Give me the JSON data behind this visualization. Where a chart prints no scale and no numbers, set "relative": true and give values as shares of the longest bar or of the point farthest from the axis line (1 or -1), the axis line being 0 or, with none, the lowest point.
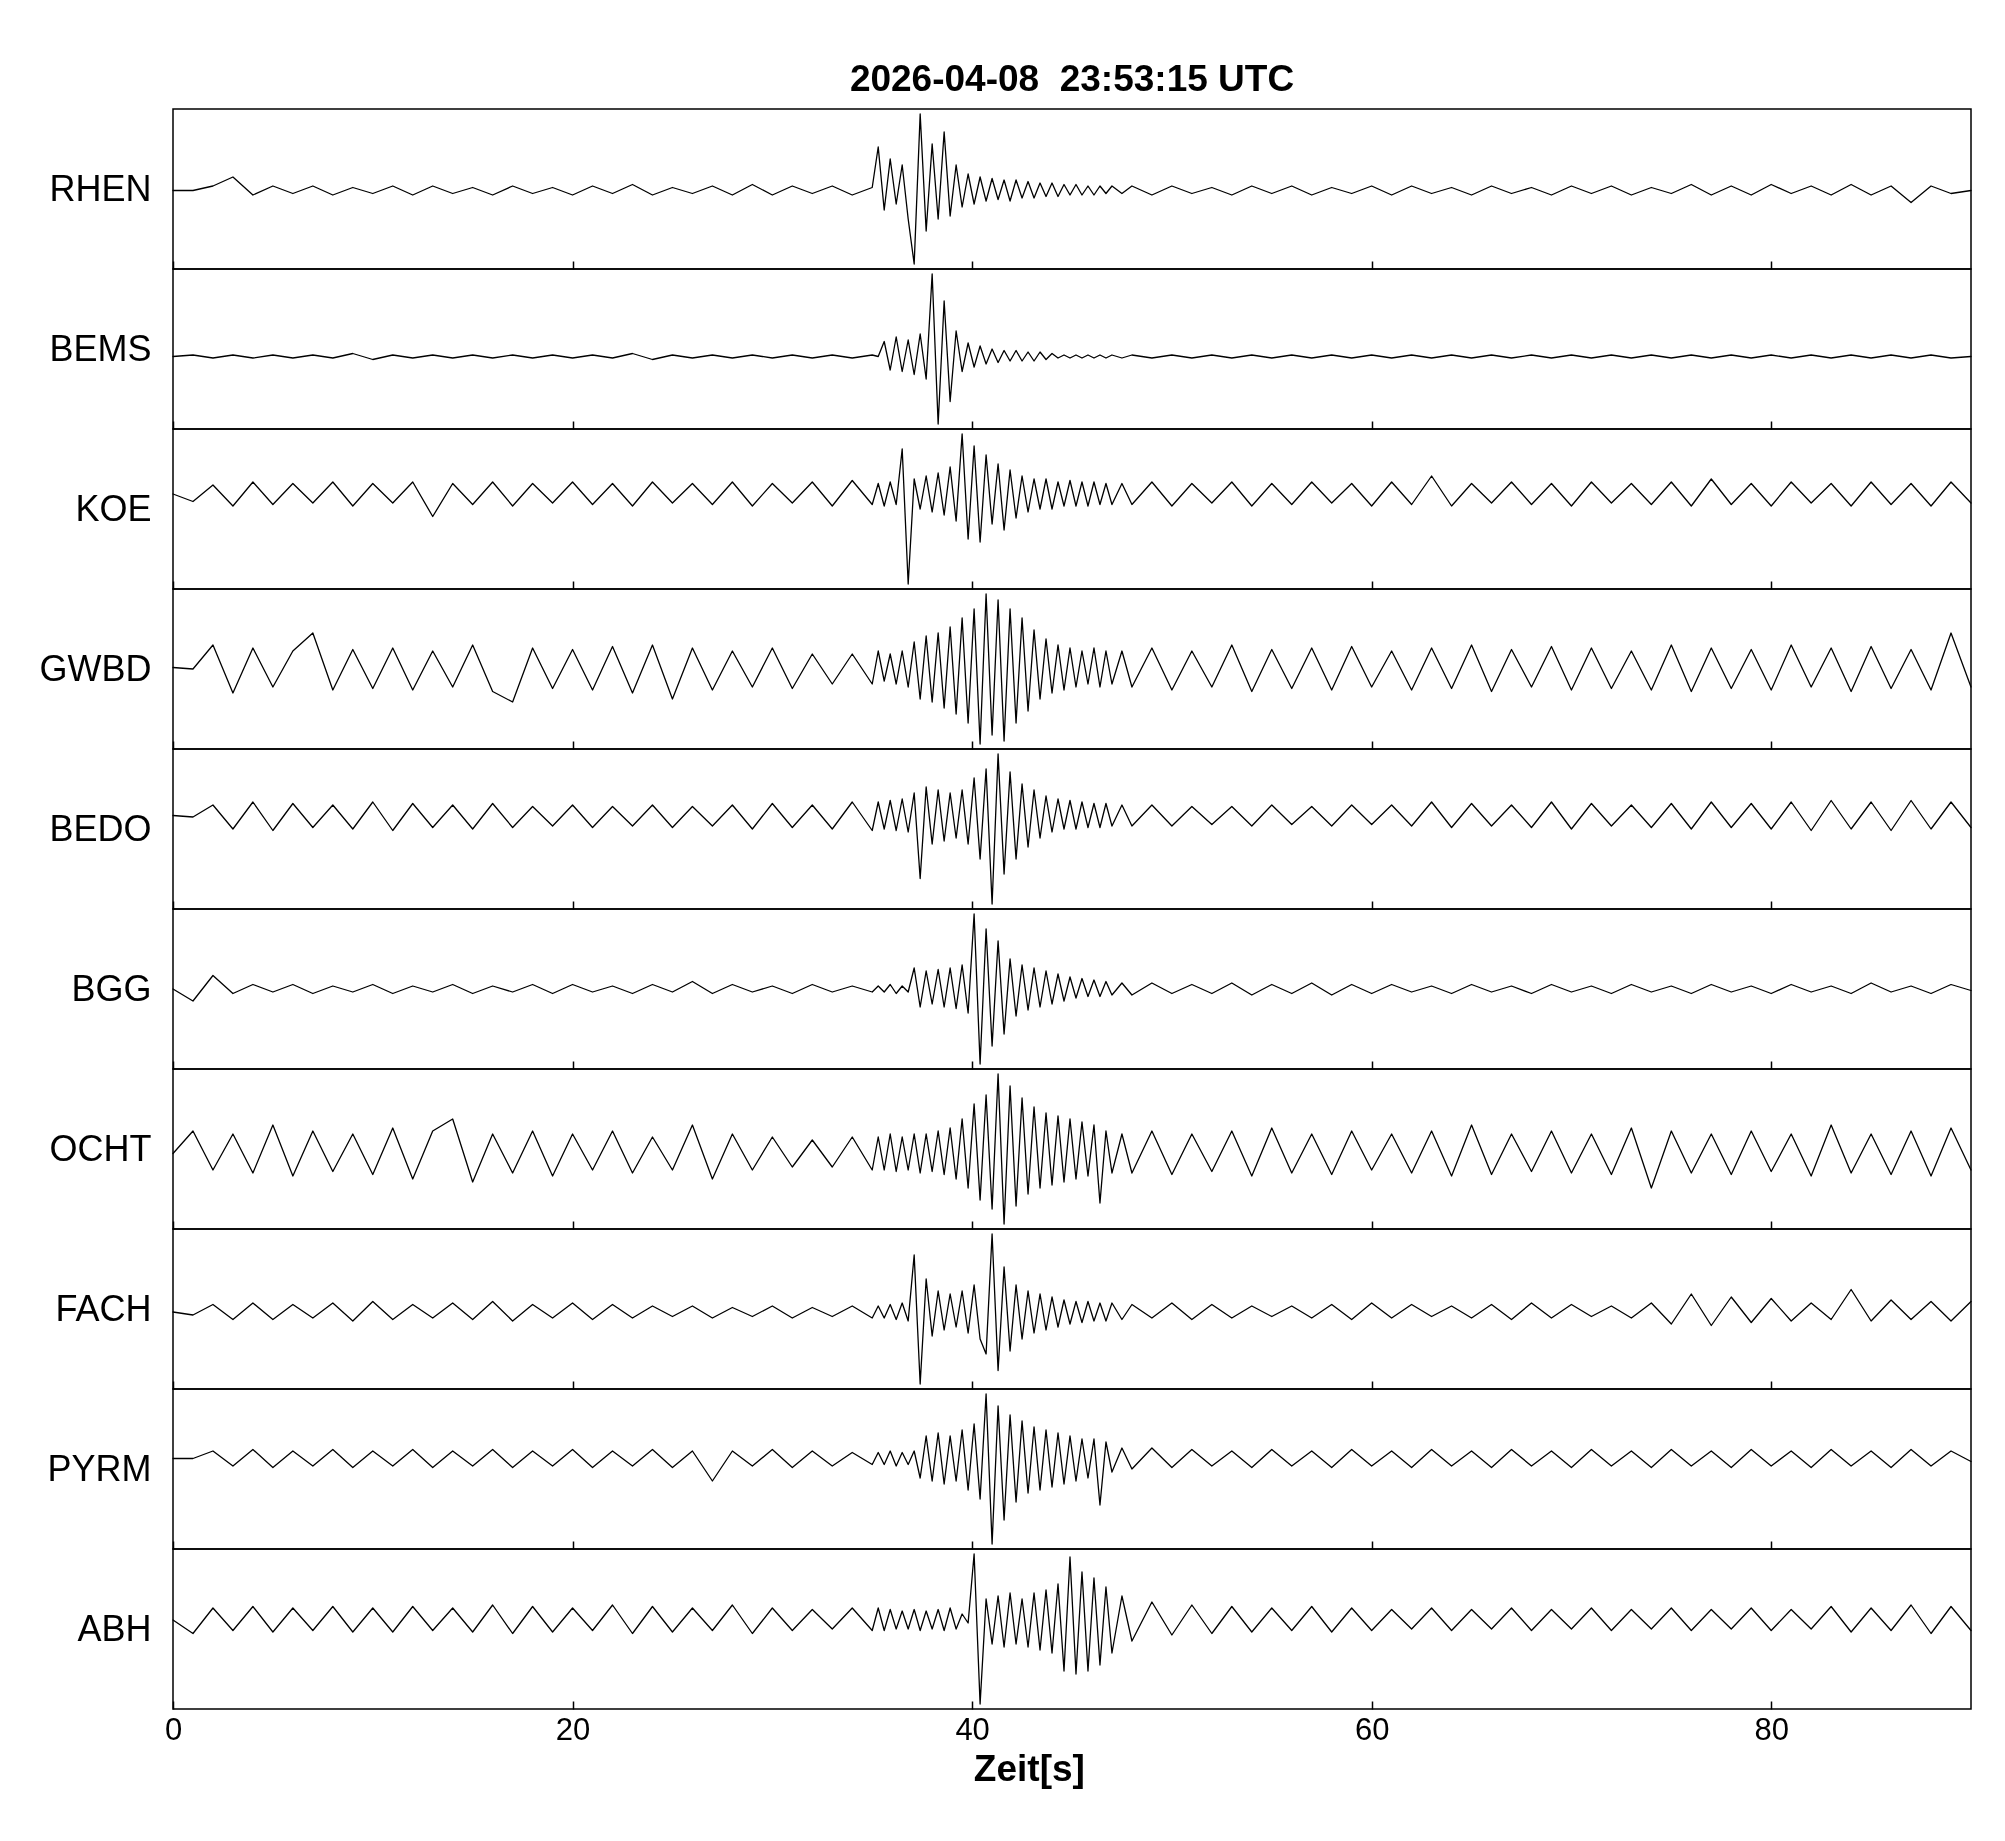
{
  "chart_data": [
    {
      "type": "line",
      "title": "2026-04-08  23:53:15 UTC",
      "ylabel": "RHEN",
      "relative": true,
      "color": "#000000",
      "xlim": [
        0,
        90
      ],
      "xticks": [
        0,
        20,
        40,
        60,
        80
      ],
      "tick_labels": false,
      "x": [
        0,
        1,
        2,
        3,
        4,
        5,
        6,
        7,
        8,
        9,
        10,
        11,
        12,
        13,
        14,
        15,
        16,
        17,
        18,
        19,
        20,
        21,
        22,
        23,
        24,
        25,
        26,
        27,
        28,
        29,
        30,
        31,
        32,
        33,
        34,
        35,
        35.3,
        35.6,
        35.9,
        36.2,
        36.5,
        36.8,
        37.1,
        37.4,
        37.7,
        38,
        38.3,
        38.6,
        38.9,
        39.2,
        39.5,
        39.8,
        40.1,
        40.4,
        40.7,
        41,
        41.3,
        41.6,
        41.9,
        42.2,
        42.5,
        42.8,
        43.1,
        43.4,
        43.7,
        44,
        44.3,
        44.6,
        44.9,
        45.2,
        45.5,
        45.8,
        46.1,
        46.4,
        46.7,
        47,
        47.5,
        48,
        49,
        50,
        51,
        52,
        53,
        54,
        55,
        56,
        57,
        58,
        59,
        60,
        61,
        62,
        63,
        64,
        65,
        66,
        67,
        68,
        69,
        70,
        71,
        72,
        73,
        74,
        75,
        76,
        77,
        78,
        79,
        80,
        81,
        82,
        83,
        84,
        85,
        86,
        87,
        88,
        89,
        90
      ],
      "values": [
        0.49,
        0.49,
        0.52,
        0.58,
        0.46,
        0.52,
        0.47,
        0.52,
        0.46,
        0.51,
        0.47,
        0.52,
        0.46,
        0.52,
        0.47,
        0.51,
        0.46,
        0.52,
        0.47,
        0.51,
        0.46,
        0.52,
        0.47,
        0.53,
        0.46,
        0.51,
        0.47,
        0.52,
        0.46,
        0.53,
        0.46,
        0.52,
        0.47,
        0.52,
        0.46,
        0.51,
        0.78,
        0.36,
        0.7,
        0.4,
        0.66,
        0.3,
        0.0,
        1.0,
        0.22,
        0.8,
        0.3,
        0.88,
        0.32,
        0.66,
        0.38,
        0.6,
        0.4,
        0.58,
        0.42,
        0.57,
        0.43,
        0.56,
        0.42,
        0.56,
        0.44,
        0.55,
        0.44,
        0.54,
        0.45,
        0.54,
        0.45,
        0.53,
        0.46,
        0.53,
        0.46,
        0.52,
        0.46,
        0.52,
        0.47,
        0.52,
        0.47,
        0.52,
        0.46,
        0.52,
        0.47,
        0.51,
        0.46,
        0.52,
        0.47,
        0.52,
        0.46,
        0.51,
        0.47,
        0.52,
        0.46,
        0.52,
        0.47,
        0.51,
        0.46,
        0.52,
        0.47,
        0.51,
        0.46,
        0.52,
        0.47,
        0.52,
        0.46,
        0.51,
        0.47,
        0.53,
        0.46,
        0.52,
        0.46,
        0.53,
        0.47,
        0.52,
        0.46,
        0.53,
        0.46,
        0.52,
        0.41,
        0.52,
        0.47,
        0.49
      ]
    },
    {
      "type": "line",
      "ylabel": "BEMS",
      "relative": true,
      "color": "#000000",
      "xlim": [
        0,
        90
      ],
      "xticks": [
        0,
        20,
        40,
        60,
        80
      ],
      "tick_labels": false,
      "x": [
        0,
        1,
        2,
        3,
        4,
        5,
        6,
        7,
        8,
        9,
        10,
        11,
        12,
        13,
        14,
        15,
        16,
        17,
        18,
        19,
        20,
        21,
        22,
        23,
        24,
        25,
        26,
        27,
        28,
        29,
        30,
        31,
        32,
        33,
        34,
        35,
        35.3,
        35.6,
        35.9,
        36.2,
        36.5,
        36.8,
        37.1,
        37.4,
        37.7,
        38,
        38.3,
        38.6,
        38.9,
        39.2,
        39.5,
        39.8,
        40.1,
        40.4,
        40.7,
        41,
        41.3,
        41.6,
        41.9,
        42.2,
        42.5,
        42.8,
        43.1,
        43.4,
        43.7,
        44,
        44.3,
        44.6,
        44.9,
        45.2,
        45.5,
        45.8,
        46.1,
        46.4,
        46.7,
        47,
        47.5,
        48,
        49,
        50,
        51,
        52,
        53,
        54,
        55,
        56,
        57,
        58,
        59,
        60,
        61,
        62,
        63,
        64,
        65,
        66,
        67,
        68,
        69,
        70,
        71,
        72,
        73,
        74,
        75,
        76,
        77,
        78,
        79,
        80,
        81,
        82,
        83,
        84,
        85,
        86,
        87,
        88,
        89,
        90
      ],
      "values": [
        0.45,
        0.46,
        0.44,
        0.46,
        0.44,
        0.46,
        0.44,
        0.46,
        0.44,
        0.47,
        0.43,
        0.46,
        0.44,
        0.46,
        0.44,
        0.46,
        0.44,
        0.46,
        0.44,
        0.46,
        0.44,
        0.46,
        0.44,
        0.47,
        0.43,
        0.46,
        0.44,
        0.46,
        0.44,
        0.46,
        0.44,
        0.46,
        0.44,
        0.46,
        0.44,
        0.46,
        0.45,
        0.55,
        0.36,
        0.58,
        0.35,
        0.56,
        0.33,
        0.6,
        0.3,
        1.0,
        0.0,
        0.82,
        0.15,
        0.62,
        0.35,
        0.54,
        0.38,
        0.52,
        0.4,
        0.5,
        0.41,
        0.49,
        0.42,
        0.49,
        0.42,
        0.48,
        0.42,
        0.48,
        0.43,
        0.47,
        0.44,
        0.46,
        0.44,
        0.46,
        0.44,
        0.46,
        0.44,
        0.46,
        0.44,
        0.46,
        0.44,
        0.46,
        0.44,
        0.46,
        0.44,
        0.46,
        0.44,
        0.46,
        0.44,
        0.46,
        0.44,
        0.46,
        0.44,
        0.46,
        0.44,
        0.46,
        0.44,
        0.46,
        0.44,
        0.46,
        0.44,
        0.46,
        0.44,
        0.46,
        0.44,
        0.46,
        0.44,
        0.46,
        0.44,
        0.46,
        0.44,
        0.46,
        0.44,
        0.46,
        0.44,
        0.46,
        0.44,
        0.46,
        0.44,
        0.46,
        0.44,
        0.46,
        0.44,
        0.45
      ]
    },
    {
      "type": "line",
      "ylabel": "KOE",
      "relative": true,
      "color": "#000000",
      "xlim": [
        0,
        90
      ],
      "xticks": [
        0,
        20,
        40,
        60,
        80
      ],
      "tick_labels": false,
      "x": [
        0,
        1,
        2,
        3,
        4,
        5,
        6,
        7,
        8,
        9,
        10,
        11,
        12,
        13,
        14,
        15,
        16,
        17,
        18,
        19,
        20,
        21,
        22,
        23,
        24,
        25,
        26,
        27,
        28,
        29,
        30,
        31,
        32,
        33,
        34,
        35,
        35.3,
        35.6,
        35.9,
        36.2,
        36.5,
        36.8,
        37.1,
        37.4,
        37.7,
        38,
        38.3,
        38.6,
        38.9,
        39.2,
        39.5,
        39.8,
        40.1,
        40.4,
        40.7,
        41,
        41.3,
        41.6,
        41.9,
        42.2,
        42.5,
        42.8,
        43.1,
        43.4,
        43.7,
        44,
        44.3,
        44.6,
        44.9,
        45.2,
        45.5,
        45.8,
        46.1,
        46.4,
        46.7,
        47,
        47.5,
        48,
        49,
        50,
        51,
        52,
        53,
        54,
        55,
        56,
        57,
        58,
        59,
        60,
        61,
        62,
        63,
        64,
        65,
        66,
        67,
        68,
        69,
        70,
        71,
        72,
        73,
        74,
        75,
        76,
        77,
        78,
        79,
        80,
        81,
        82,
        83,
        84,
        85,
        86,
        87,
        88,
        89,
        90
      ],
      "values": [
        0.6,
        0.55,
        0.66,
        0.52,
        0.68,
        0.53,
        0.67,
        0.54,
        0.68,
        0.52,
        0.67,
        0.54,
        0.68,
        0.45,
        0.67,
        0.53,
        0.68,
        0.52,
        0.67,
        0.54,
        0.68,
        0.53,
        0.67,
        0.52,
        0.68,
        0.54,
        0.67,
        0.53,
        0.68,
        0.52,
        0.67,
        0.54,
        0.68,
        0.52,
        0.69,
        0.53,
        0.67,
        0.52,
        0.68,
        0.53,
        0.9,
        0.0,
        0.7,
        0.5,
        0.72,
        0.48,
        0.74,
        0.46,
        0.78,
        0.42,
        1.0,
        0.3,
        0.92,
        0.28,
        0.86,
        0.4,
        0.8,
        0.36,
        0.76,
        0.44,
        0.72,
        0.48,
        0.7,
        0.5,
        0.7,
        0.5,
        0.68,
        0.52,
        0.69,
        0.52,
        0.68,
        0.52,
        0.68,
        0.53,
        0.67,
        0.53,
        0.67,
        0.53,
        0.68,
        0.52,
        0.67,
        0.54,
        0.68,
        0.52,
        0.67,
        0.53,
        0.68,
        0.54,
        0.67,
        0.52,
        0.68,
        0.53,
        0.72,
        0.52,
        0.67,
        0.54,
        0.68,
        0.53,
        0.67,
        0.52,
        0.68,
        0.54,
        0.67,
        0.53,
        0.68,
        0.52,
        0.7,
        0.53,
        0.67,
        0.52,
        0.68,
        0.54,
        0.67,
        0.52,
        0.68,
        0.53,
        0.67,
        0.52,
        0.68,
        0.54
      ]
    },
    {
      "type": "line",
      "ylabel": "GWBD",
      "relative": true,
      "color": "#000000",
      "xlim": [
        0,
        90
      ],
      "xticks": [
        0,
        20,
        40,
        60,
        80
      ],
      "tick_labels": false,
      "x": [
        0,
        1,
        2,
        3,
        4,
        5,
        6,
        7,
        8,
        9,
        10,
        11,
        12,
        13,
        14,
        15,
        16,
        17,
        18,
        19,
        20,
        21,
        22,
        23,
        24,
        25,
        26,
        27,
        28,
        29,
        30,
        31,
        32,
        33,
        34,
        35,
        35.3,
        35.6,
        35.9,
        36.2,
        36.5,
        36.8,
        37.1,
        37.4,
        37.7,
        38,
        38.3,
        38.6,
        38.9,
        39.2,
        39.5,
        39.8,
        40.1,
        40.4,
        40.7,
        41,
        41.3,
        41.6,
        41.9,
        42.2,
        42.5,
        42.8,
        43.1,
        43.4,
        43.7,
        44,
        44.3,
        44.6,
        44.9,
        45.2,
        45.5,
        45.8,
        46.1,
        46.4,
        46.7,
        47,
        47.5,
        48,
        49,
        50,
        51,
        52,
        53,
        54,
        55,
        56,
        57,
        58,
        59,
        60,
        61,
        62,
        63,
        64,
        65,
        66,
        67,
        68,
        69,
        70,
        71,
        72,
        73,
        74,
        75,
        76,
        77,
        78,
        79,
        80,
        81,
        82,
        83,
        84,
        85,
        86,
        87,
        88,
        89,
        90
      ],
      "values": [
        0.51,
        0.5,
        0.66,
        0.34,
        0.64,
        0.38,
        0.62,
        0.74,
        0.36,
        0.63,
        0.37,
        0.64,
        0.36,
        0.62,
        0.38,
        0.66,
        0.35,
        0.28,
        0.64,
        0.37,
        0.63,
        0.36,
        0.65,
        0.34,
        0.66,
        0.3,
        0.64,
        0.36,
        0.62,
        0.38,
        0.64,
        0.37,
        0.6,
        0.4,
        0.6,
        0.4,
        0.62,
        0.42,
        0.6,
        0.4,
        0.62,
        0.38,
        0.68,
        0.3,
        0.72,
        0.28,
        0.74,
        0.24,
        0.78,
        0.2,
        0.84,
        0.14,
        0.9,
        0.0,
        1.0,
        0.06,
        0.96,
        0.02,
        0.9,
        0.14,
        0.84,
        0.22,
        0.76,
        0.3,
        0.7,
        0.34,
        0.66,
        0.36,
        0.64,
        0.38,
        0.62,
        0.4,
        0.64,
        0.38,
        0.62,
        0.4,
        0.62,
        0.38,
        0.64,
        0.36,
        0.62,
        0.38,
        0.66,
        0.35,
        0.63,
        0.37,
        0.64,
        0.36,
        0.65,
        0.38,
        0.62,
        0.36,
        0.64,
        0.37,
        0.66,
        0.35,
        0.63,
        0.38,
        0.65,
        0.36,
        0.64,
        0.37,
        0.62,
        0.36,
        0.66,
        0.35,
        0.64,
        0.37,
        0.63,
        0.36,
        0.66,
        0.38,
        0.64,
        0.35,
        0.65,
        0.37,
        0.63,
        0.36,
        0.74,
        0.38
      ]
    },
    {
      "type": "line",
      "ylabel": "BEDO",
      "relative": true,
      "color": "#000000",
      "xlim": [
        0,
        90
      ],
      "xticks": [
        0,
        20,
        40,
        60,
        80
      ],
      "tick_labels": false,
      "x": [
        0,
        1,
        2,
        3,
        4,
        5,
        6,
        7,
        8,
        9,
        10,
        11,
        12,
        13,
        14,
        15,
        16,
        17,
        18,
        19,
        20,
        21,
        22,
        23,
        24,
        25,
        26,
        27,
        28,
        29,
        30,
        31,
        32,
        33,
        34,
        35,
        35.3,
        35.6,
        35.9,
        36.2,
        36.5,
        36.8,
        37.1,
        37.4,
        37.7,
        38,
        38.3,
        38.6,
        38.9,
        39.2,
        39.5,
        39.8,
        40.1,
        40.4,
        40.7,
        41,
        41.3,
        41.6,
        41.9,
        42.2,
        42.5,
        42.8,
        43.1,
        43.4,
        43.7,
        44,
        44.3,
        44.6,
        44.9,
        45.2,
        45.5,
        45.8,
        46.1,
        46.4,
        46.7,
        47,
        47.5,
        48,
        49,
        50,
        51,
        52,
        53,
        54,
        55,
        56,
        57,
        58,
        59,
        60,
        61,
        62,
        63,
        64,
        65,
        66,
        67,
        68,
        69,
        70,
        71,
        72,
        73,
        74,
        75,
        76,
        77,
        78,
        79,
        80,
        81,
        82,
        83,
        84,
        85,
        86,
        87,
        88,
        89,
        90
      ],
      "values": [
        0.59,
        0.58,
        0.66,
        0.5,
        0.68,
        0.49,
        0.67,
        0.51,
        0.66,
        0.5,
        0.68,
        0.49,
        0.67,
        0.51,
        0.66,
        0.5,
        0.67,
        0.51,
        0.65,
        0.52,
        0.66,
        0.51,
        0.65,
        0.52,
        0.66,
        0.51,
        0.65,
        0.52,
        0.66,
        0.5,
        0.67,
        0.51,
        0.66,
        0.5,
        0.68,
        0.49,
        0.68,
        0.5,
        0.69,
        0.49,
        0.7,
        0.48,
        0.74,
        0.17,
        0.78,
        0.4,
        0.76,
        0.42,
        0.74,
        0.44,
        0.76,
        0.4,
        0.84,
        0.3,
        0.9,
        0.0,
        1.0,
        0.2,
        0.88,
        0.3,
        0.8,
        0.38,
        0.76,
        0.44,
        0.72,
        0.48,
        0.7,
        0.5,
        0.69,
        0.5,
        0.68,
        0.51,
        0.67,
        0.51,
        0.67,
        0.52,
        0.66,
        0.52,
        0.66,
        0.52,
        0.65,
        0.53,
        0.65,
        0.52,
        0.66,
        0.53,
        0.65,
        0.52,
        0.66,
        0.53,
        0.66,
        0.52,
        0.68,
        0.51,
        0.67,
        0.52,
        0.66,
        0.51,
        0.68,
        0.5,
        0.67,
        0.52,
        0.66,
        0.51,
        0.67,
        0.5,
        0.68,
        0.51,
        0.67,
        0.5,
        0.68,
        0.49,
        0.69,
        0.5,
        0.68,
        0.49,
        0.69,
        0.5,
        0.68,
        0.51
      ]
    },
    {
      "type": "line",
      "ylabel": "BGG",
      "relative": true,
      "color": "#000000",
      "xlim": [
        0,
        90
      ],
      "xticks": [
        0,
        20,
        40,
        60,
        80
      ],
      "tick_labels": false,
      "x": [
        0,
        1,
        2,
        3,
        4,
        5,
        6,
        7,
        8,
        9,
        10,
        11,
        12,
        13,
        14,
        15,
        16,
        17,
        18,
        19,
        20,
        21,
        22,
        23,
        24,
        25,
        26,
        27,
        28,
        29,
        30,
        31,
        32,
        33,
        34,
        35,
        35.3,
        35.6,
        35.9,
        36.2,
        36.5,
        36.8,
        37.1,
        37.4,
        37.7,
        38,
        38.3,
        38.6,
        38.9,
        39.2,
        39.5,
        39.8,
        40.1,
        40.4,
        40.7,
        41,
        41.3,
        41.6,
        41.9,
        42.2,
        42.5,
        42.8,
        43.1,
        43.4,
        43.7,
        44,
        44.3,
        44.6,
        44.9,
        45.2,
        45.5,
        45.8,
        46.1,
        46.4,
        46.7,
        47,
        47.5,
        48,
        49,
        50,
        51,
        52,
        53,
        54,
        55,
        56,
        57,
        58,
        59,
        60,
        61,
        62,
        63,
        64,
        65,
        66,
        67,
        68,
        69,
        70,
        71,
        72,
        73,
        74,
        75,
        76,
        77,
        78,
        79,
        80,
        81,
        82,
        83,
        84,
        85,
        86,
        87,
        88,
        89,
        90
      ],
      "values": [
        0.5,
        0.42,
        0.59,
        0.47,
        0.53,
        0.48,
        0.53,
        0.47,
        0.52,
        0.48,
        0.53,
        0.47,
        0.52,
        0.48,
        0.53,
        0.47,
        0.52,
        0.48,
        0.53,
        0.47,
        0.53,
        0.48,
        0.52,
        0.47,
        0.53,
        0.48,
        0.55,
        0.47,
        0.53,
        0.48,
        0.52,
        0.47,
        0.53,
        0.48,
        0.52,
        0.48,
        0.52,
        0.48,
        0.53,
        0.47,
        0.52,
        0.48,
        0.64,
        0.38,
        0.62,
        0.4,
        0.63,
        0.38,
        0.64,
        0.37,
        0.66,
        0.34,
        1.0,
        0.0,
        0.9,
        0.12,
        0.82,
        0.2,
        0.7,
        0.32,
        0.66,
        0.36,
        0.64,
        0.38,
        0.62,
        0.4,
        0.6,
        0.42,
        0.58,
        0.44,
        0.57,
        0.45,
        0.56,
        0.45,
        0.55,
        0.46,
        0.54,
        0.46,
        0.54,
        0.47,
        0.53,
        0.47,
        0.54,
        0.46,
        0.53,
        0.47,
        0.54,
        0.46,
        0.53,
        0.47,
        0.53,
        0.48,
        0.52,
        0.47,
        0.53,
        0.48,
        0.52,
        0.47,
        0.53,
        0.48,
        0.52,
        0.47,
        0.53,
        0.48,
        0.52,
        0.47,
        0.53,
        0.48,
        0.52,
        0.47,
        0.53,
        0.48,
        0.52,
        0.47,
        0.54,
        0.48,
        0.52,
        0.47,
        0.53,
        0.49
      ]
    },
    {
      "type": "line",
      "ylabel": "OCHT",
      "relative": true,
      "color": "#000000",
      "xlim": [
        0,
        90
      ],
      "xticks": [
        0,
        20,
        40,
        60,
        80
      ],
      "tick_labels": false,
      "x": [
        0,
        1,
        2,
        3,
        4,
        5,
        6,
        7,
        8,
        9,
        10,
        11,
        12,
        13,
        14,
        15,
        16,
        17,
        18,
        19,
        20,
        21,
        22,
        23,
        24,
        25,
        26,
        27,
        28,
        29,
        30,
        31,
        32,
        33,
        34,
        35,
        35.3,
        35.6,
        35.9,
        36.2,
        36.5,
        36.8,
        37.1,
        37.4,
        37.7,
        38,
        38.3,
        38.6,
        38.9,
        39.2,
        39.5,
        39.8,
        40.1,
        40.4,
        40.7,
        41,
        41.3,
        41.6,
        41.9,
        42.2,
        42.5,
        42.8,
        43.1,
        43.4,
        43.7,
        44,
        44.3,
        44.6,
        44.9,
        45.2,
        45.5,
        45.8,
        46.1,
        46.4,
        46.7,
        47,
        47.5,
        48,
        49,
        50,
        51,
        52,
        53,
        54,
        55,
        56,
        57,
        58,
        59,
        60,
        61,
        62,
        63,
        64,
        65,
        66,
        67,
        68,
        69,
        70,
        71,
        72,
        73,
        74,
        75,
        76,
        77,
        78,
        79,
        80,
        81,
        82,
        83,
        84,
        85,
        86,
        87,
        88,
        89,
        90
      ],
      "values": [
        0.47,
        0.62,
        0.36,
        0.6,
        0.34,
        0.66,
        0.32,
        0.62,
        0.35,
        0.6,
        0.33,
        0.64,
        0.3,
        0.62,
        0.7,
        0.28,
        0.6,
        0.34,
        0.62,
        0.32,
        0.6,
        0.36,
        0.62,
        0.34,
        0.58,
        0.36,
        0.66,
        0.3,
        0.6,
        0.36,
        0.58,
        0.38,
        0.56,
        0.38,
        0.58,
        0.36,
        0.58,
        0.36,
        0.6,
        0.35,
        0.58,
        0.36,
        0.6,
        0.34,
        0.6,
        0.35,
        0.62,
        0.33,
        0.64,
        0.3,
        0.7,
        0.24,
        0.8,
        0.16,
        0.86,
        0.1,
        1.0,
        0.0,
        0.92,
        0.12,
        0.84,
        0.2,
        0.78,
        0.24,
        0.74,
        0.26,
        0.72,
        0.28,
        0.7,
        0.3,
        0.68,
        0.32,
        0.66,
        0.14,
        0.62,
        0.34,
        0.6,
        0.34,
        0.62,
        0.33,
        0.6,
        0.35,
        0.62,
        0.32,
        0.64,
        0.34,
        0.6,
        0.33,
        0.62,
        0.36,
        0.6,
        0.34,
        0.62,
        0.32,
        0.66,
        0.33,
        0.6,
        0.35,
        0.62,
        0.34,
        0.6,
        0.33,
        0.64,
        0.24,
        0.62,
        0.34,
        0.6,
        0.33,
        0.62,
        0.35,
        0.6,
        0.32,
        0.66,
        0.34,
        0.6,
        0.33,
        0.62,
        0.32,
        0.64,
        0.36
      ]
    },
    {
      "type": "line",
      "ylabel": "FACH",
      "relative": true,
      "color": "#000000",
      "xlim": [
        0,
        90
      ],
      "xticks": [
        0,
        20,
        40,
        60,
        80
      ],
      "tick_labels": false,
      "x": [
        0,
        1,
        2,
        3,
        4,
        5,
        6,
        7,
        8,
        9,
        10,
        11,
        12,
        13,
        14,
        15,
        16,
        17,
        18,
        19,
        20,
        21,
        22,
        23,
        24,
        25,
        26,
        27,
        28,
        29,
        30,
        31,
        32,
        33,
        34,
        35,
        35.3,
        35.6,
        35.9,
        36.2,
        36.5,
        36.8,
        37.1,
        37.4,
        37.7,
        38,
        38.3,
        38.6,
        38.9,
        39.2,
        39.5,
        39.8,
        40.1,
        40.4,
        40.7,
        41,
        41.3,
        41.6,
        41.9,
        42.2,
        42.5,
        42.8,
        43.1,
        43.4,
        43.7,
        44,
        44.3,
        44.6,
        44.9,
        45.2,
        45.5,
        45.8,
        46.1,
        46.4,
        46.7,
        47,
        47.5,
        48,
        49,
        50,
        51,
        52,
        53,
        54,
        55,
        56,
        57,
        58,
        59,
        60,
        61,
        62,
        63,
        64,
        65,
        66,
        67,
        68,
        69,
        70,
        71,
        72,
        73,
        74,
        75,
        76,
        77,
        78,
        79,
        80,
        81,
        82,
        83,
        84,
        85,
        86,
        87,
        88,
        89,
        90
      ],
      "values": [
        0.48,
        0.46,
        0.53,
        0.43,
        0.54,
        0.43,
        0.53,
        0.44,
        0.54,
        0.42,
        0.55,
        0.43,
        0.53,
        0.44,
        0.54,
        0.43,
        0.55,
        0.42,
        0.53,
        0.44,
        0.54,
        0.43,
        0.53,
        0.44,
        0.52,
        0.45,
        0.52,
        0.44,
        0.51,
        0.45,
        0.52,
        0.44,
        0.51,
        0.45,
        0.52,
        0.44,
        0.52,
        0.44,
        0.53,
        0.43,
        0.54,
        0.42,
        0.86,
        0.0,
        0.7,
        0.32,
        0.62,
        0.36,
        0.6,
        0.38,
        0.62,
        0.34,
        0.66,
        0.3,
        0.2,
        1.0,
        0.09,
        0.78,
        0.22,
        0.66,
        0.3,
        0.62,
        0.34,
        0.6,
        0.36,
        0.58,
        0.38,
        0.56,
        0.4,
        0.55,
        0.41,
        0.55,
        0.42,
        0.54,
        0.42,
        0.54,
        0.43,
        0.53,
        0.44,
        0.54,
        0.43,
        0.53,
        0.44,
        0.52,
        0.45,
        0.52,
        0.44,
        0.53,
        0.43,
        0.54,
        0.44,
        0.53,
        0.45,
        0.52,
        0.44,
        0.53,
        0.43,
        0.54,
        0.44,
        0.53,
        0.45,
        0.52,
        0.44,
        0.54,
        0.4,
        0.6,
        0.39,
        0.58,
        0.41,
        0.57,
        0.42,
        0.54,
        0.43,
        0.63,
        0.42,
        0.56,
        0.43,
        0.55,
        0.42,
        0.55
      ]
    },
    {
      "type": "line",
      "ylabel": "PYRM",
      "relative": true,
      "color": "#000000",
      "xlim": [
        0,
        90
      ],
      "xticks": [
        0,
        20,
        40,
        60,
        80
      ],
      "tick_labels": false,
      "x": [
        0,
        1,
        2,
        3,
        4,
        5,
        6,
        7,
        8,
        9,
        10,
        11,
        12,
        13,
        14,
        15,
        16,
        17,
        18,
        19,
        20,
        21,
        22,
        23,
        24,
        25,
        26,
        27,
        28,
        29,
        30,
        31,
        32,
        33,
        34,
        35,
        35.3,
        35.6,
        35.9,
        36.2,
        36.5,
        36.8,
        37.1,
        37.4,
        37.7,
        38,
        38.3,
        38.6,
        38.9,
        39.2,
        39.5,
        39.8,
        40.1,
        40.4,
        40.7,
        41,
        41.3,
        41.6,
        41.9,
        42.2,
        42.5,
        42.8,
        43.1,
        43.4,
        43.7,
        44,
        44.3,
        44.6,
        44.9,
        45.2,
        45.5,
        45.8,
        46.1,
        46.4,
        46.7,
        47,
        47.5,
        48,
        49,
        50,
        51,
        52,
        53,
        54,
        55,
        56,
        57,
        58,
        59,
        60,
        61,
        62,
        63,
        64,
        65,
        66,
        67,
        68,
        69,
        70,
        71,
        72,
        73,
        74,
        75,
        76,
        77,
        78,
        79,
        80,
        81,
        82,
        83,
        84,
        85,
        86,
        87,
        88,
        89,
        90
      ],
      "values": [
        0.57,
        0.57,
        0.62,
        0.52,
        0.63,
        0.51,
        0.62,
        0.52,
        0.63,
        0.51,
        0.62,
        0.52,
        0.63,
        0.51,
        0.62,
        0.52,
        0.63,
        0.51,
        0.62,
        0.52,
        0.63,
        0.51,
        0.62,
        0.52,
        0.63,
        0.51,
        0.62,
        0.42,
        0.62,
        0.52,
        0.63,
        0.51,
        0.62,
        0.52,
        0.61,
        0.53,
        0.61,
        0.53,
        0.62,
        0.52,
        0.61,
        0.53,
        0.62,
        0.44,
        0.72,
        0.42,
        0.74,
        0.4,
        0.72,
        0.42,
        0.76,
        0.36,
        0.8,
        0.3,
        1.0,
        0.0,
        0.92,
        0.16,
        0.86,
        0.28,
        0.82,
        0.34,
        0.78,
        0.36,
        0.76,
        0.38,
        0.74,
        0.4,
        0.72,
        0.42,
        0.7,
        0.44,
        0.7,
        0.26,
        0.68,
        0.48,
        0.64,
        0.5,
        0.64,
        0.51,
        0.63,
        0.52,
        0.62,
        0.51,
        0.63,
        0.52,
        0.62,
        0.51,
        0.63,
        0.52,
        0.62,
        0.51,
        0.63,
        0.52,
        0.62,
        0.51,
        0.63,
        0.52,
        0.62,
        0.51,
        0.63,
        0.52,
        0.62,
        0.51,
        0.63,
        0.52,
        0.62,
        0.51,
        0.63,
        0.52,
        0.62,
        0.51,
        0.63,
        0.52,
        0.62,
        0.51,
        0.63,
        0.52,
        0.62,
        0.55
      ]
    },
    {
      "type": "line",
      "ylabel": "ABH",
      "xlabel": "Zeit[s]",
      "relative": true,
      "color": "#000000",
      "xlim": [
        0,
        90
      ],
      "xticks": [
        0,
        20,
        40,
        60,
        80
      ],
      "x": [
        0,
        1,
        2,
        3,
        4,
        5,
        6,
        7,
        8,
        9,
        10,
        11,
        12,
        13,
        14,
        15,
        16,
        17,
        18,
        19,
        20,
        21,
        22,
        23,
        24,
        25,
        26,
        27,
        28,
        29,
        30,
        31,
        32,
        33,
        34,
        35,
        35.3,
        35.6,
        35.9,
        36.2,
        36.5,
        36.8,
        37.1,
        37.4,
        37.7,
        38,
        38.3,
        38.6,
        38.9,
        39.2,
        39.5,
        39.8,
        40.1,
        40.4,
        40.7,
        41,
        41.3,
        41.6,
        41.9,
        42.2,
        42.5,
        42.8,
        43.1,
        43.4,
        43.7,
        44,
        44.3,
        44.6,
        44.9,
        45.2,
        45.5,
        45.8,
        46.1,
        46.4,
        46.7,
        47,
        47.5,
        48,
        49,
        50,
        51,
        52,
        53,
        54,
        55,
        56,
        57,
        58,
        59,
        60,
        61,
        62,
        63,
        64,
        65,
        66,
        67,
        68,
        69,
        70,
        71,
        72,
        73,
        74,
        75,
        76,
        77,
        78,
        79,
        80,
        81,
        82,
        83,
        84,
        85,
        86,
        87,
        88,
        89,
        90
      ],
      "values": [
        0.56,
        0.47,
        0.64,
        0.49,
        0.65,
        0.48,
        0.64,
        0.49,
        0.65,
        0.48,
        0.64,
        0.48,
        0.65,
        0.49,
        0.64,
        0.48,
        0.66,
        0.47,
        0.65,
        0.48,
        0.64,
        0.49,
        0.66,
        0.47,
        0.65,
        0.48,
        0.64,
        0.49,
        0.66,
        0.47,
        0.64,
        0.49,
        0.63,
        0.5,
        0.64,
        0.49,
        0.64,
        0.49,
        0.63,
        0.5,
        0.62,
        0.5,
        0.63,
        0.49,
        0.62,
        0.5,
        0.63,
        0.49,
        0.64,
        0.5,
        0.6,
        0.54,
        1.0,
        0.0,
        0.7,
        0.4,
        0.72,
        0.38,
        0.74,
        0.4,
        0.7,
        0.38,
        0.74,
        0.36,
        0.76,
        0.34,
        0.8,
        0.22,
        0.98,
        0.2,
        0.88,
        0.22,
        0.84,
        0.26,
        0.78,
        0.34,
        0.72,
        0.42,
        0.68,
        0.46,
        0.66,
        0.47,
        0.65,
        0.48,
        0.64,
        0.49,
        0.65,
        0.48,
        0.64,
        0.49,
        0.63,
        0.5,
        0.64,
        0.49,
        0.63,
        0.5,
        0.64,
        0.49,
        0.63,
        0.5,
        0.64,
        0.49,
        0.63,
        0.5,
        0.64,
        0.49,
        0.63,
        0.5,
        0.64,
        0.49,
        0.63,
        0.5,
        0.65,
        0.48,
        0.64,
        0.49,
        0.66,
        0.47,
        0.65,
        0.49
      ]
    }
  ]
}
